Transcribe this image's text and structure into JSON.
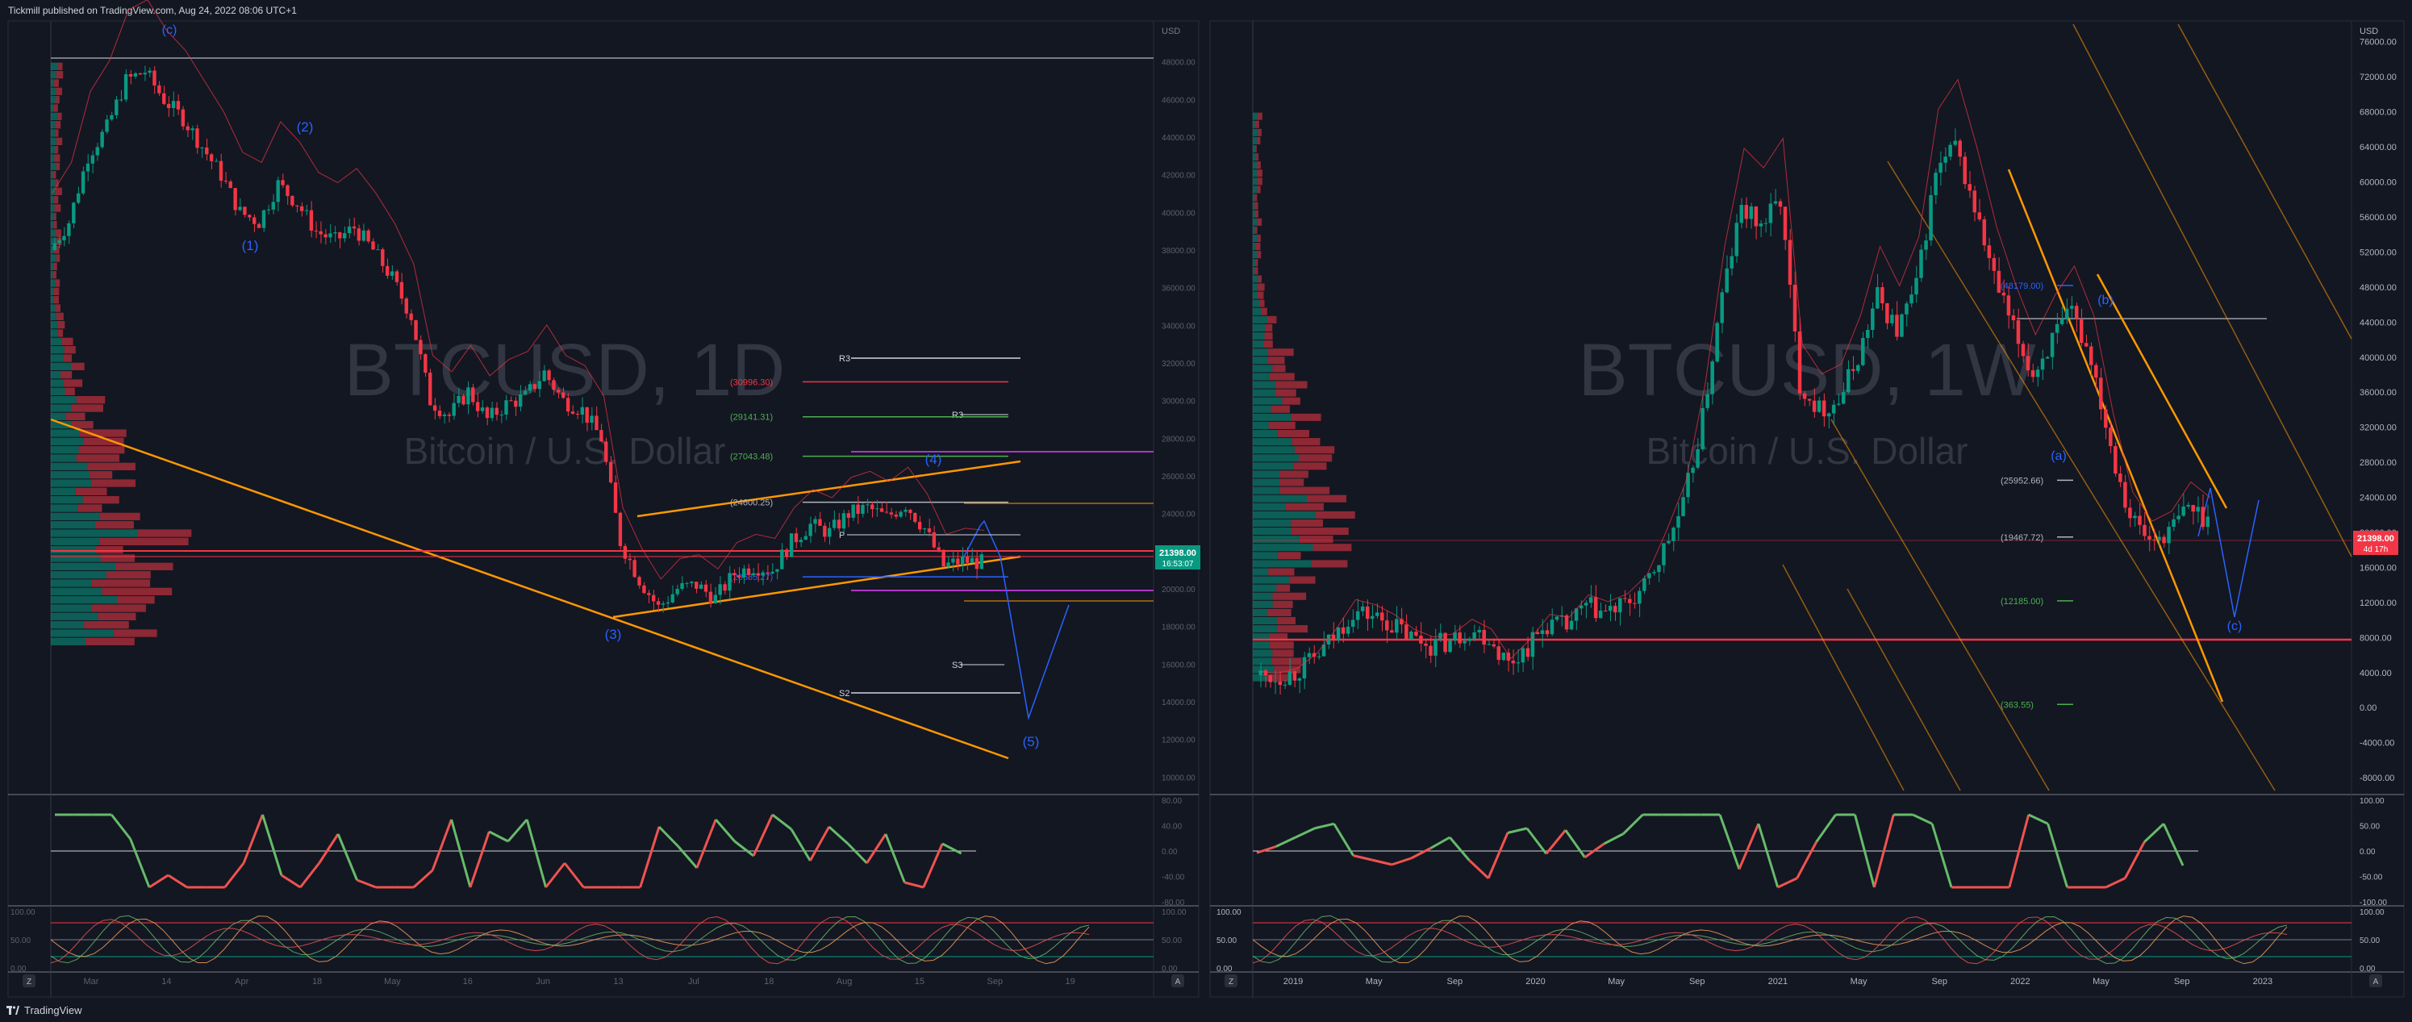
{
  "header": {
    "published": "Tickmill published on TradingView.com, Aug 24, 2022 08:06 UTC+1"
  },
  "footer": {
    "brand": "TradingView"
  },
  "colors": {
    "bg": "#131722",
    "up": "#089981",
    "down": "#f23645",
    "orange": "#ff9800",
    "wave": "#2962ff"
  },
  "left_chart": {
    "watermark": "BTCUSD, 1D",
    "subtitle": "Bitcoin / U.S. Dollar",
    "currency": "USD",
    "price_ticks": [
      "48000.00",
      "46000.00",
      "44000.00",
      "42000.00",
      "40000.00",
      "38000.00",
      "36000.00",
      "34000.00",
      "32000.00",
      "30000.00",
      "28000.00",
      "26000.00",
      "24000.00",
      "22000.00",
      "20000.00",
      "18000.00",
      "16000.00",
      "14000.00",
      "12000.00",
      "10000.00"
    ],
    "price_min": 9500,
    "price_max": 50000,
    "last_price": "21398.00",
    "countdown": "16:53:07",
    "time_ticks": [
      "Mar",
      "14",
      "Apr",
      "18",
      "May",
      "16",
      "Jun",
      "13",
      "Jul",
      "18",
      "Aug",
      "15",
      "Sep",
      "19"
    ],
    "waves": [
      "(c)",
      "(2)",
      "(1)",
      "(3)",
      "(4)",
      "(5)"
    ],
    "pivots": {
      "r3": "R3",
      "p": "P",
      "s3": "S3",
      "s2": "S2"
    },
    "fib_levels": [
      {
        "label": "(30996.30)",
        "value": 30996.3,
        "color": "#f23645"
      },
      {
        "label": "(29141.31)",
        "value": 29141.31,
        "color": "#4caf50"
      },
      {
        "label": "(27043.48)",
        "value": 27043.48,
        "color": "#4caf50"
      },
      {
        "label": "(24600.25)",
        "value": 24600.25,
        "color": "#b2b5be"
      },
      {
        "label": "(20635.27)",
        "value": 20635.27,
        "color": "#2962ff"
      }
    ],
    "rsi_ticks": [
      "80.00",
      "40.00",
      "0.00",
      "-40.00",
      "-80.00"
    ],
    "stoch_ticks": [
      "100.00",
      "50.00",
      "0.00"
    ],
    "axis_toggle_z": "Z",
    "axis_toggle_a": "A"
  },
  "right_chart": {
    "watermark": "BTCUSD, 1W",
    "subtitle": "Bitcoin / U.S. Dollar",
    "currency": "USD",
    "price_ticks": [
      "76000.00",
      "72000.00",
      "68000.00",
      "64000.00",
      "60000.00",
      "56000.00",
      "52000.00",
      "48000.00",
      "44000.00",
      "40000.00",
      "36000.00",
      "32000.00",
      "28000.00",
      "24000.00",
      "20000.00",
      "16000.00",
      "12000.00",
      "8000.00",
      "4000.00",
      "0.00",
      "-4000.00",
      "-8000.00"
    ],
    "price_min": -9000,
    "price_max": 78000,
    "last_price": "21398.00",
    "countdown": "4d 17h",
    "time_ticks": [
      "2019",
      "May",
      "Sep",
      "2020",
      "May",
      "Sep",
      "2021",
      "May",
      "Sep",
      "2022",
      "May",
      "Sep",
      "2023"
    ],
    "waves": [
      "(b)",
      "(a)",
      "(c)"
    ],
    "fib_levels": [
      {
        "label": "(48179.00)",
        "value": 48179,
        "color": "#2962ff"
      },
      {
        "label": "(25952.66)",
        "value": 25952.66,
        "color": "#b2b5be"
      },
      {
        "label": "(19467.72)",
        "value": 19467.72,
        "color": "#b2b5be"
      },
      {
        "label": "(12185.00)",
        "value": 12185,
        "color": "#4caf50"
      },
      {
        "label": "(363.55)",
        "value": 363.55,
        "color": "#4caf50"
      }
    ],
    "rsi_ticks": [
      "100.00",
      "50.00",
      "0.00",
      "-50.00",
      "-100.00"
    ],
    "stoch_ticks": [
      "100.00",
      "50.00",
      "0.00"
    ],
    "axis_toggle_z": "Z",
    "axis_toggle_a": "A"
  },
  "chart_data": [
    {
      "type": "candlestick",
      "title": "BTCUSD, 1D",
      "subtitle": "Bitcoin / U.S. Dollar",
      "ylabel": "USD",
      "ylim": [
        9500,
        50000
      ],
      "x_ticks": [
        "Mar",
        "14",
        "Apr",
        "18",
        "May",
        "16",
        "Jun",
        "13",
        "Jul",
        "18",
        "Aug",
        "15",
        "Sep",
        "19"
      ],
      "close_path": [
        38000,
        39500,
        43000,
        44500,
        47000,
        47500,
        46000,
        45000,
        43500,
        42000,
        40000,
        39500,
        41500,
        40500,
        39000,
        38500,
        39200,
        38000,
        36500,
        34500,
        30000,
        29200,
        30500,
        29000,
        29800,
        30200,
        31500,
        30000,
        29500,
        28000,
        22500,
        20500,
        19000,
        20000,
        20200,
        19500,
        20800,
        21200,
        21000,
        22500,
        23400,
        23000,
        24000,
        24300,
        23800,
        24500,
        23200,
        21200,
        21500,
        21398
      ],
      "last": 21398
    },
    {
      "type": "candlestick",
      "title": "BTCUSD, 1W",
      "subtitle": "Bitcoin / U.S. Dollar",
      "ylabel": "USD",
      "ylim": [
        -9000,
        78000
      ],
      "x_ticks": [
        "2019",
        "May",
        "Sep",
        "2020",
        "May",
        "Sep",
        "2021",
        "May",
        "Sep",
        "2022",
        "May",
        "Sep",
        "2023"
      ],
      "close_path": [
        3700,
        3500,
        4000,
        5500,
        8000,
        11000,
        10500,
        9500,
        8000,
        7200,
        7500,
        9000,
        8000,
        5000,
        7000,
        9500,
        9200,
        11500,
        10800,
        11600,
        13500,
        18000,
        23000,
        33000,
        47000,
        57000,
        55000,
        58000,
        37000,
        34000,
        35000,
        40000,
        47000,
        43000,
        48000,
        61000,
        64000,
        57000,
        49000,
        43000,
        38000,
        42000,
        45000,
        40000,
        30000,
        22000,
        19000,
        20000,
        23000,
        21398
      ],
      "last": 21398
    }
  ]
}
